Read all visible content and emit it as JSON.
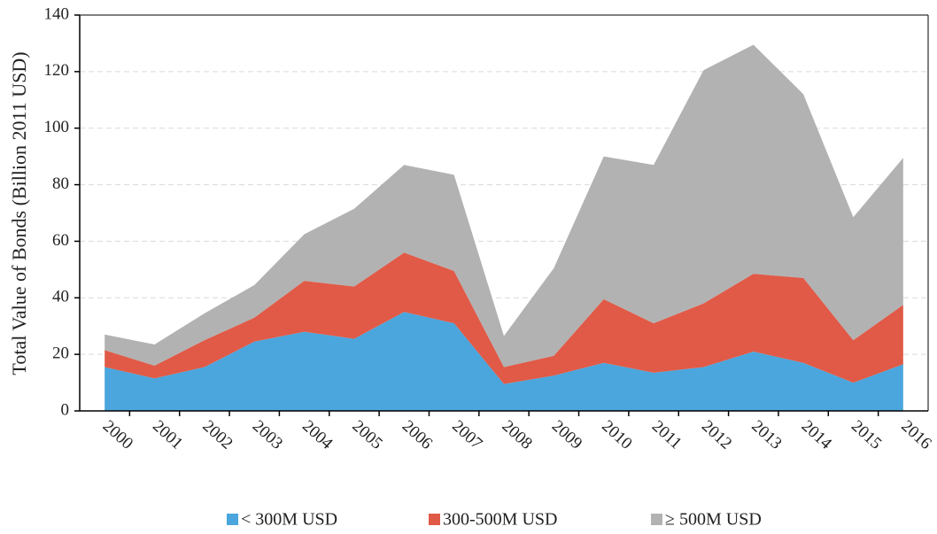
{
  "chart_data": {
    "type": "stacked_area",
    "y_label": "Total Value of Bonds (Billion 2011 USD)",
    "categories": [
      "2000",
      "2001",
      "2002",
      "2003",
      "2004",
      "2005",
      "2006",
      "2007",
      "2008",
      "2009",
      "2010",
      "2011",
      "2012",
      "2013",
      "2014",
      "2015",
      "2016"
    ],
    "series": [
      {
        "name": "< 300M USD",
        "color": "#4aa6dc",
        "values": [
          15.5,
          11.5,
          15.5,
          24.5,
          28,
          25.5,
          35,
          31,
          9.5,
          12.5,
          17,
          13.5,
          15.5,
          21,
          17,
          10,
          16.5
        ]
      },
      {
        "name": "300-500M USD",
        "color": "#e05a47",
        "values": [
          6,
          4.5,
          9.5,
          8.5,
          18,
          18.5,
          21,
          18.5,
          6,
          7,
          22.5,
          17.5,
          22.5,
          27.5,
          30,
          15,
          21
        ]
      },
      {
        "name": "≥ 500M USD",
        "color": "#b2b2b2",
        "values": [
          5.5,
          7.5,
          9.5,
          11.5,
          16.5,
          27.5,
          31,
          34,
          11,
          31,
          50.5,
          56,
          82.5,
          81,
          65,
          43.5,
          52
        ]
      }
    ],
    "ylim": [
      0,
      140
    ],
    "yticks": [
      0,
      20,
      40,
      60,
      80,
      100,
      120,
      140
    ],
    "grid": true,
    "legend": "bottom"
  }
}
